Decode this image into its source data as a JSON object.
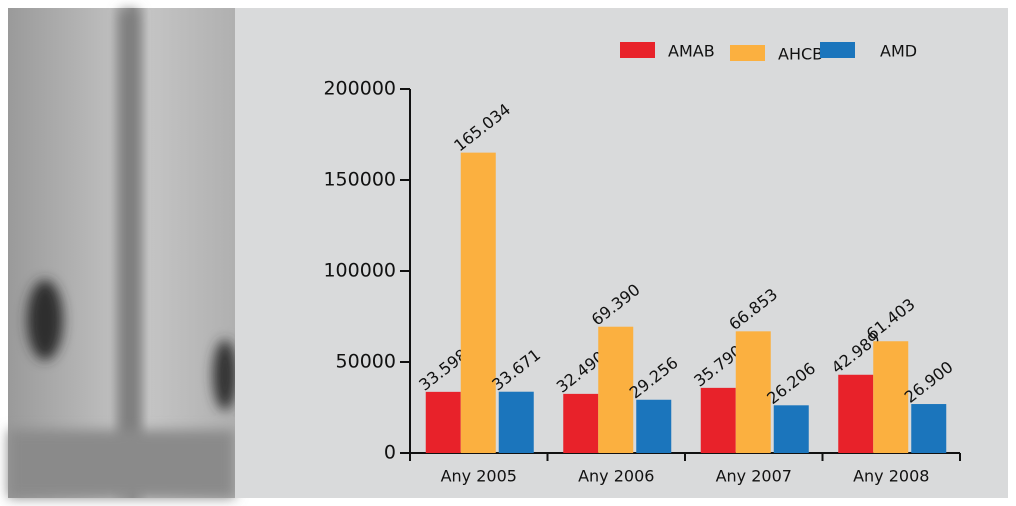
{
  "chart_data": {
    "type": "bar",
    "categories": [
      "Any 2005",
      "Any 2006",
      "Any 2007",
      "Any 2008"
    ],
    "series": [
      {
        "name": "AMAB",
        "color": "#e8222a",
        "values": [
          33598,
          32490,
          35790,
          42989
        ],
        "value_labels": [
          "33.598",
          "32.490",
          "35.790",
          "42.989"
        ]
      },
      {
        "name": "AHCB",
        "color": "#fbb040",
        "values": [
          165034,
          69390,
          66853,
          61403
        ],
        "value_labels": [
          "165.034",
          "69.390",
          "66.853",
          "61.403"
        ]
      },
      {
        "name": "AMD",
        "color": "#1b75bc",
        "values": [
          33671,
          29256,
          26206,
          26900
        ],
        "value_labels": [
          "33.671",
          "29.256",
          "26.206",
          "26.900"
        ]
      }
    ],
    "ylim": [
      0,
      200000
    ],
    "yticks": [
      0,
      50000,
      100000,
      150000,
      200000
    ],
    "grid": false,
    "legend": "top-right"
  }
}
